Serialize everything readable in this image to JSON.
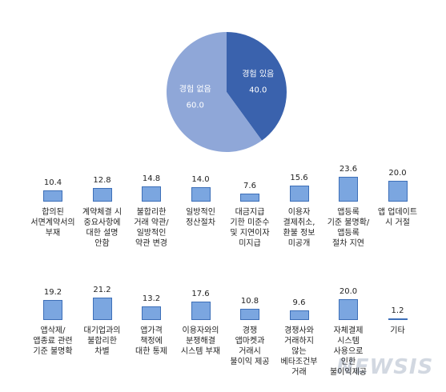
{
  "watermark": "NEWSIS",
  "chart_data": [
    {
      "type": "pie",
      "categories": [
        "경험 있음",
        "경험 없음"
      ],
      "values": [
        40.0,
        60.0
      ],
      "value_labels": [
        "40.0",
        "60.0"
      ],
      "colors": [
        "#3a62ad",
        "#8fa7d8"
      ]
    },
    {
      "type": "bar",
      "color": "#7ba6e0",
      "categories": [
        "합의된\n서면계약서의\n부재",
        "계약체결 시\n중요사항에\n대한 설명\n안함",
        "불합리한\n거래 약관/\n일방적인\n약관 변경",
        "일방적인\n정산절차",
        "대금지급\n기한 미준수\n및 지연이자\n미지급",
        "이용자\n결제취소,\n환불 정보\n미공개",
        "앱등록\n기준 불명확/\n앱등록\n절차 지연",
        "앱 업데이트\n시 거절"
      ],
      "values": [
        10.4,
        12.8,
        14.8,
        14.0,
        7.6,
        15.6,
        23.6,
        20.0
      ],
      "value_labels": [
        "10.4",
        "12.8",
        "14.8",
        "14.0",
        "7.6",
        "15.6",
        "23.6",
        "20.0"
      ]
    },
    {
      "type": "bar",
      "color": "#7ba6e0",
      "categories": [
        "앱삭제/\n앱종료 관련\n기준 불명확",
        "대기업과의\n불합리한\n차별",
        "앱가격\n책정에\n대한 통제",
        "이용자와의\n분쟁해결\n시스템 부재",
        "경쟁\n앱마켓과\n거래시\n불이익 제공",
        "경쟁사와\n거래하지\n않는\n베타조건부\n거래",
        "자체결제\n시스템\n사용으로\n인한\n불이익제공",
        "기타"
      ],
      "values": [
        19.2,
        21.2,
        13.2,
        17.6,
        10.8,
        9.6,
        20.0,
        1.2
      ],
      "value_labels": [
        "19.2",
        "21.2",
        "13.2",
        "17.6",
        "10.8",
        "9.6",
        "20.0",
        "1.2"
      ]
    }
  ]
}
